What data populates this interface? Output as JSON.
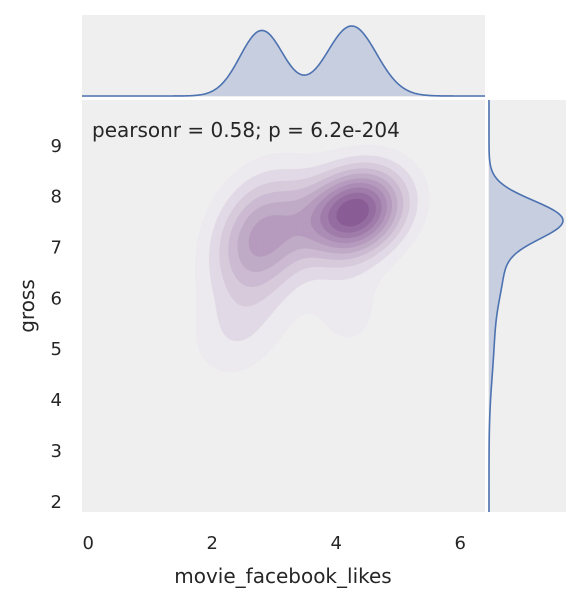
{
  "chart_data": {
    "type": "jointplot-kde",
    "xlabel": "movie_facebook_likes",
    "ylabel": "gross",
    "annotation": "pearsonr = 0.58; p = 6.2e-204",
    "xlim": [
      -0.1,
      6.4
    ],
    "ylim": [
      1.8,
      9.9
    ],
    "xticks": [
      0,
      2,
      4,
      6
    ],
    "yticks": [
      2,
      3,
      4,
      5,
      6,
      7,
      8,
      9
    ],
    "grid": false,
    "colors": {
      "panel_bg": "#efefef",
      "marginal_fill": "#c6cee0",
      "marginal_line": "#4c72b0",
      "contour_light": "#ece9ef",
      "contour_dark": "#8a5d96"
    },
    "joint_density": {
      "levels": 10,
      "components": [
        {
          "cx": 2.8,
          "cy": 7.2,
          "sx": 0.55,
          "sy": 0.85,
          "rho": 0.25,
          "weight": 0.45
        },
        {
          "cx": 4.3,
          "cy": 7.7,
          "sx": 0.55,
          "sy": 0.6,
          "rho": 0.2,
          "weight": 0.55
        },
        {
          "cx": 2.4,
          "cy": 5.3,
          "sx": 0.55,
          "sy": 0.7,
          "rho": 0.2,
          "weight": 0.1
        },
        {
          "cx": 4.2,
          "cy": 5.8,
          "sx": 0.5,
          "sy": 0.8,
          "rho": 0.0,
          "weight": 0.08
        }
      ]
    },
    "marginal_x": {
      "components": [
        {
          "mean": 2.8,
          "sd": 0.35,
          "weight": 0.45
        },
        {
          "mean": 4.25,
          "sd": 0.4,
          "weight": 0.55
        }
      ]
    },
    "marginal_y": {
      "components": [
        {
          "mean": 7.55,
          "sd": 0.38,
          "weight": 0.7
        },
        {
          "mean": 6.6,
          "sd": 0.6,
          "weight": 0.2
        },
        {
          "mean": 5.2,
          "sd": 0.8,
          "weight": 0.1
        }
      ]
    }
  }
}
